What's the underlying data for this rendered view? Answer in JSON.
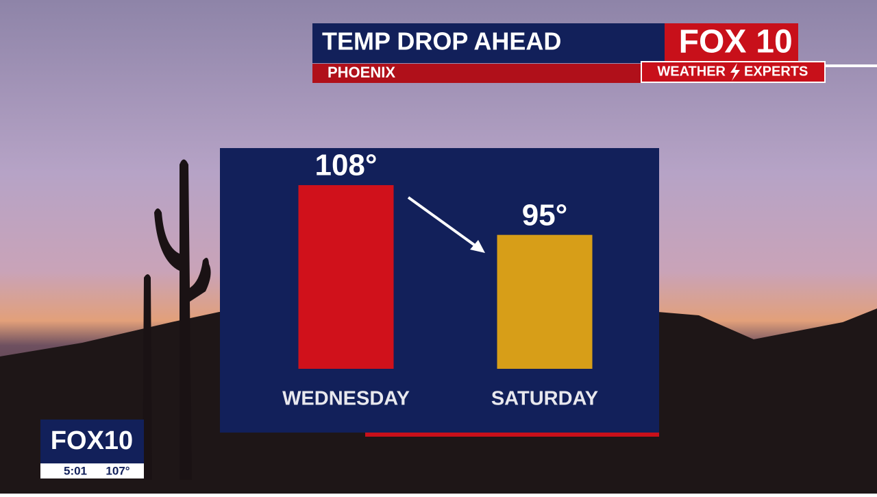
{
  "header": {
    "title": "TEMP DROP AHEAD",
    "subtitle": "PHOENIX",
    "logo_fox": "FOX",
    "logo_num": "10",
    "tag_left": "WEATHER",
    "tag_right": "EXPERTS"
  },
  "bug": {
    "logo": "FOX10",
    "time": "5:01",
    "temp": "107°"
  },
  "chart_data": {
    "type": "bar",
    "categories": [
      "WEDNESDAY",
      "SATURDAY"
    ],
    "values": [
      108,
      95
    ],
    "value_labels": [
      "108°",
      "95°"
    ],
    "colors": [
      "#d0111b",
      "#d79e18"
    ],
    "ylim": [
      60,
      115
    ]
  }
}
